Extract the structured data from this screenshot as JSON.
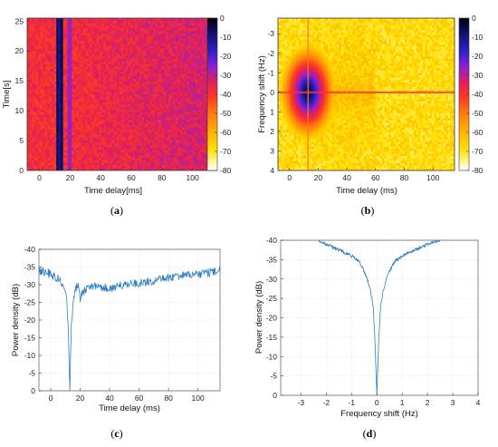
{
  "chart_data": [
    {
      "id": "a",
      "type": "heatmap",
      "panel_label": "a",
      "xlabel": "Time delay[ms]",
      "ylabel": "Time[s]",
      "xlim": [
        -8,
        115
      ],
      "ylim": [
        25.5,
        0
      ],
      "xticks": [
        0,
        20,
        40,
        60,
        80,
        100
      ],
      "yticks": [
        0,
        5,
        10,
        15,
        20,
        25
      ],
      "colorbar": {
        "min": -80,
        "max": 0,
        "ticks": [
          0,
          -10,
          -20,
          -30,
          -40,
          -50,
          -60,
          -70,
          -80
        ]
      },
      "features": [
        {
          "kind": "vertical_band",
          "x": 13,
          "width_ms": 2.5,
          "level_db": -12
        },
        {
          "kind": "vertical_band",
          "x": 20,
          "width_ms": 2,
          "level_db": -30
        }
      ],
      "background_db_near": -38,
      "background_db_far": -33
    },
    {
      "id": "b",
      "type": "heatmap",
      "panel_label": "b",
      "xlabel": "Time delay (ms)",
      "ylabel": "Frequency shift (Hz)",
      "xlim": [
        -8,
        115
      ],
      "ylim": [
        -3.8,
        4
      ],
      "xticks": [
        0,
        20,
        40,
        60,
        80,
        100
      ],
      "yticks": [
        -3,
        -2,
        -1,
        0,
        1,
        2,
        3,
        4
      ],
      "colorbar": {
        "min": -80,
        "max": 0,
        "ticks": [
          0,
          -10,
          -20,
          -30,
          -40,
          -50,
          -60,
          -70,
          -80
        ]
      },
      "features": [
        {
          "kind": "peak",
          "x": 13,
          "y": 0,
          "level_db": 0
        },
        {
          "kind": "horizontal_line",
          "y": 0,
          "level_db": -40
        },
        {
          "kind": "vertical_line",
          "x": 13,
          "level_db": -50
        }
      ],
      "background_db": -68
    },
    {
      "id": "c",
      "type": "line",
      "panel_label": "c",
      "xlabel": "Time delay (ms)",
      "ylabel": "Power density (dB)",
      "xlim": [
        -8,
        115
      ],
      "ylim": [
        -40,
        0
      ],
      "xticks": [
        0,
        20,
        40,
        60,
        80,
        100
      ],
      "yticks": [
        0,
        -5,
        -10,
        -15,
        -20,
        -25,
        -30,
        -35,
        -40
      ],
      "grid": true,
      "series": [
        {
          "color": "#2f7fc1",
          "x": [
            -8,
            -4,
            0,
            4,
            8,
            10,
            11,
            12,
            12.5,
            13,
            13.5,
            14,
            15,
            16,
            17,
            18,
            19,
            20,
            21,
            22,
            25,
            30,
            40,
            50,
            60,
            70,
            80,
            90,
            100,
            110,
            115
          ],
          "y": [
            -34,
            -33.5,
            -33,
            -32,
            -30.5,
            -28,
            -25,
            -18,
            -8,
            0,
            -10,
            -18,
            -24,
            -26.5,
            -28.5,
            -30,
            -29,
            -25,
            -27,
            -28,
            -29.5,
            -29.5,
            -29,
            -30,
            -30.5,
            -31,
            -32,
            -32.5,
            -33,
            -33.5,
            -34
          ]
        }
      ]
    },
    {
      "id": "d",
      "type": "line",
      "panel_label": "d",
      "xlabel": "Frequency shift (Hz)",
      "ylabel": "Power density (dB)",
      "xlim": [
        -3.8,
        4
      ],
      "ylim": [
        -40,
        0
      ],
      "xticks": [
        -3,
        -2,
        -1,
        0,
        1,
        2,
        3,
        4
      ],
      "yticks": [
        0,
        -5,
        -10,
        -15,
        -20,
        -25,
        -30,
        -35,
        -40
      ],
      "grid": true,
      "series": [
        {
          "color": "#2f7fc1",
          "x": [
            -2.3,
            -2.0,
            -1.5,
            -1.0,
            -0.7,
            -0.5,
            -0.35,
            -0.25,
            -0.15,
            -0.08,
            0,
            0.08,
            0.15,
            0.25,
            0.35,
            0.5,
            0.7,
            1.0,
            1.5,
            2.0,
            2.5
          ],
          "y": [
            -40,
            -39,
            -37.5,
            -36,
            -34.5,
            -32,
            -29.5,
            -27,
            -23,
            -15,
            0,
            -15,
            -23,
            -27,
            -29.5,
            -32,
            -34.5,
            -36,
            -37.5,
            -39,
            -40
          ]
        }
      ]
    }
  ]
}
